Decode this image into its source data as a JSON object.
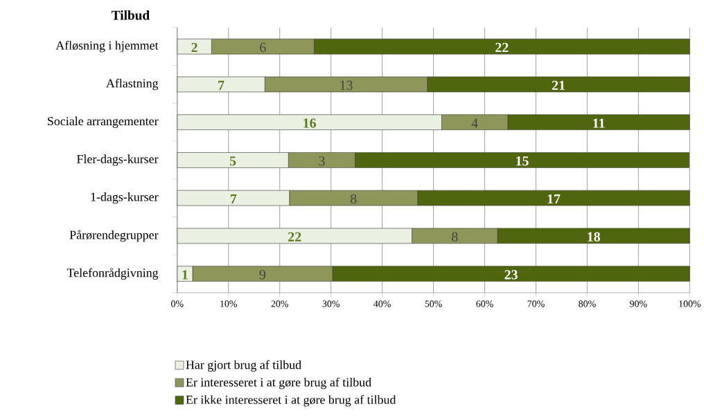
{
  "chart_data": {
    "type": "bar",
    "orientation": "horizontal",
    "stacked": true,
    "title": "Tilbud",
    "categories": [
      "Afløsning i hjemmet",
      "Aflastning",
      "Sociale arrangementer",
      "Fler-dags-kurser",
      "1-dags-kurser",
      "Pårørendegrupper",
      "Telefonrådgivning"
    ],
    "series": [
      {
        "name": "Har gjort brug af tilbud",
        "color": "#ebf1e2",
        "values": [
          6.7,
          17.1,
          51.6,
          21.7,
          21.9,
          45.8,
          3.0
        ]
      },
      {
        "name": "Er interesseret i at gøre brug af tilbud",
        "color": "#8f965a",
        "values": [
          20.0,
          31.7,
          12.9,
          13.0,
          25.0,
          16.7,
          27.3
        ]
      },
      {
        "name": "Er ikke interesseret i at gøre brug af tilbud",
        "color": "#4f650e",
        "values": [
          73.3,
          51.2,
          35.5,
          65.2,
          53.1,
          37.5,
          69.7
        ]
      }
    ],
    "annotations": [
      "2",
      "6",
      "22",
      "7",
      "13",
      "21",
      "16",
      "4",
      "11",
      "5",
      "3",
      "15",
      "7",
      "8",
      "17",
      "22",
      "8",
      "18",
      "1",
      "9",
      "23"
    ],
    "xlim": [
      0,
      100
    ],
    "xticks": [
      {
        "value": 0,
        "label": "0%"
      },
      {
        "value": 10,
        "label": "10%"
      },
      {
        "value": 20,
        "label": "20%"
      },
      {
        "value": 30,
        "label": "30%"
      },
      {
        "value": 40,
        "label": "40%"
      },
      {
        "value": 50,
        "label": "50%"
      },
      {
        "value": 60,
        "label": "60%"
      },
      {
        "value": 70,
        "label": "70%"
      },
      {
        "value": 80,
        "label": "80%"
      },
      {
        "value": 90,
        "label": "90%"
      },
      {
        "value": 100,
        "label": "100%"
      }
    ],
    "grid": "x",
    "legend": "bottom"
  }
}
